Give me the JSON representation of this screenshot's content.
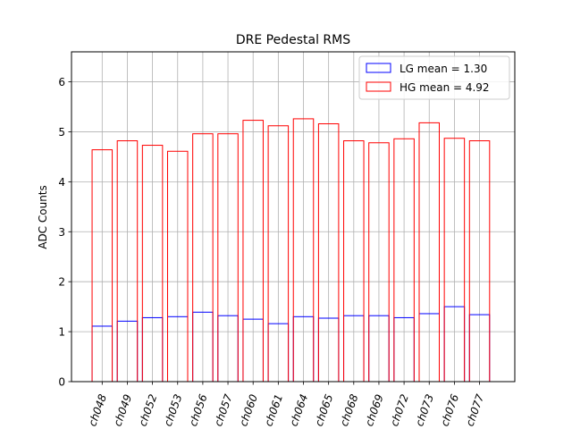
{
  "chart_data": {
    "type": "bar",
    "title": "DRE Pedestal RMS",
    "xlabel": "",
    "ylabel": "ADC Counts",
    "categories": [
      "ch048",
      "ch049",
      "ch052",
      "ch053",
      "ch056",
      "ch057",
      "ch060",
      "ch061",
      "ch064",
      "ch065",
      "ch068",
      "ch069",
      "ch072",
      "ch073",
      "ch076",
      "ch077"
    ],
    "series": [
      {
        "name": "LG mean = 1.30",
        "color": "#0000ff",
        "values": [
          1.11,
          1.21,
          1.28,
          1.3,
          1.39,
          1.32,
          1.25,
          1.16,
          1.3,
          1.27,
          1.32,
          1.32,
          1.28,
          1.36,
          1.5,
          1.34
        ]
      },
      {
        "name": "HG mean = 4.92",
        "color": "#ff0000",
        "values": [
          4.64,
          4.82,
          4.73,
          4.61,
          4.96,
          4.96,
          5.23,
          5.12,
          5.26,
          5.16,
          4.82,
          4.78,
          4.86,
          5.18,
          4.87,
          4.82
        ]
      }
    ],
    "ylim": [
      0,
      6.6
    ],
    "yticks": [
      0,
      1,
      2,
      3,
      4,
      5,
      6
    ],
    "grid": true,
    "legend_position": "top-right"
  }
}
